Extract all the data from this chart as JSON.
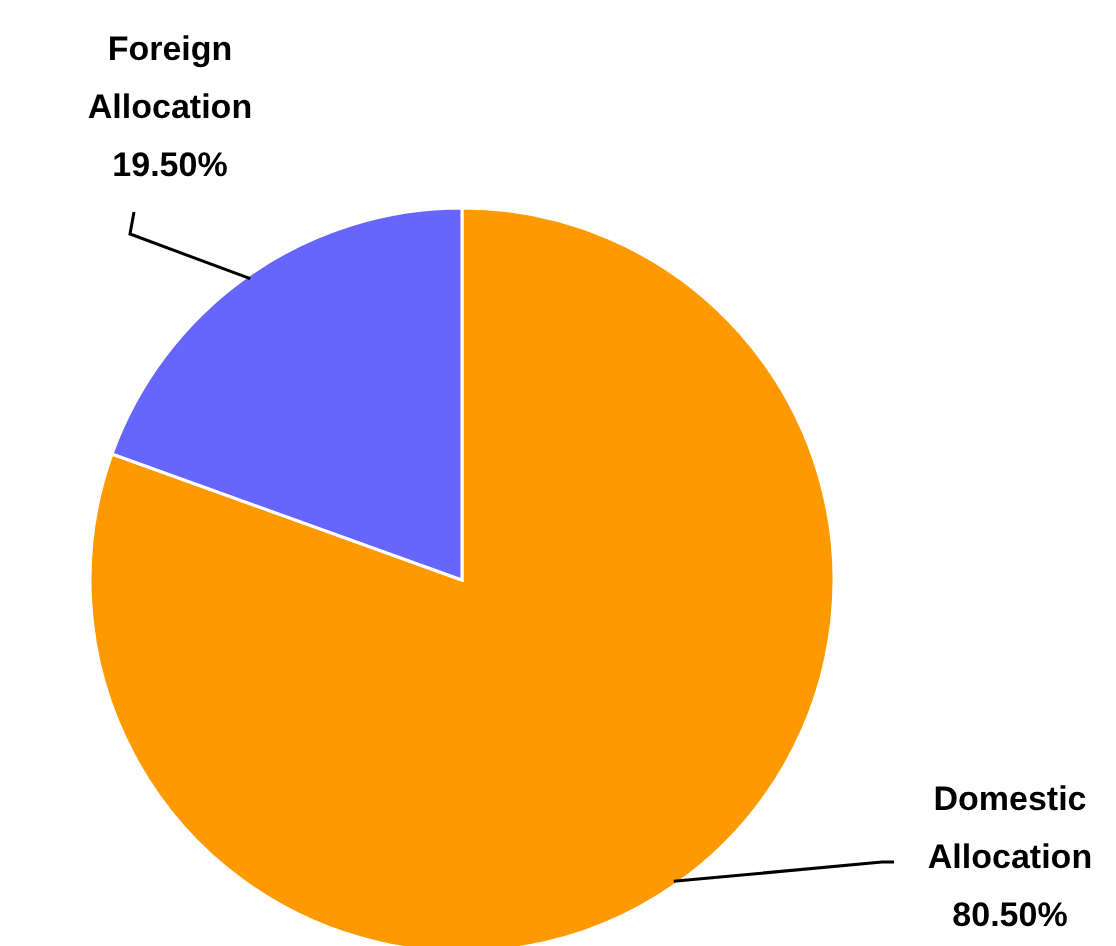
{
  "chart_data": {
    "type": "pie",
    "categories": [
      "Domestic Allocation",
      "Foreign Allocation"
    ],
    "values": [
      80.5,
      19.5
    ],
    "colors": [
      "#ff9900",
      "#6666ff"
    ],
    "value_labels": [
      "80.50%",
      "19.50%"
    ]
  }
}
